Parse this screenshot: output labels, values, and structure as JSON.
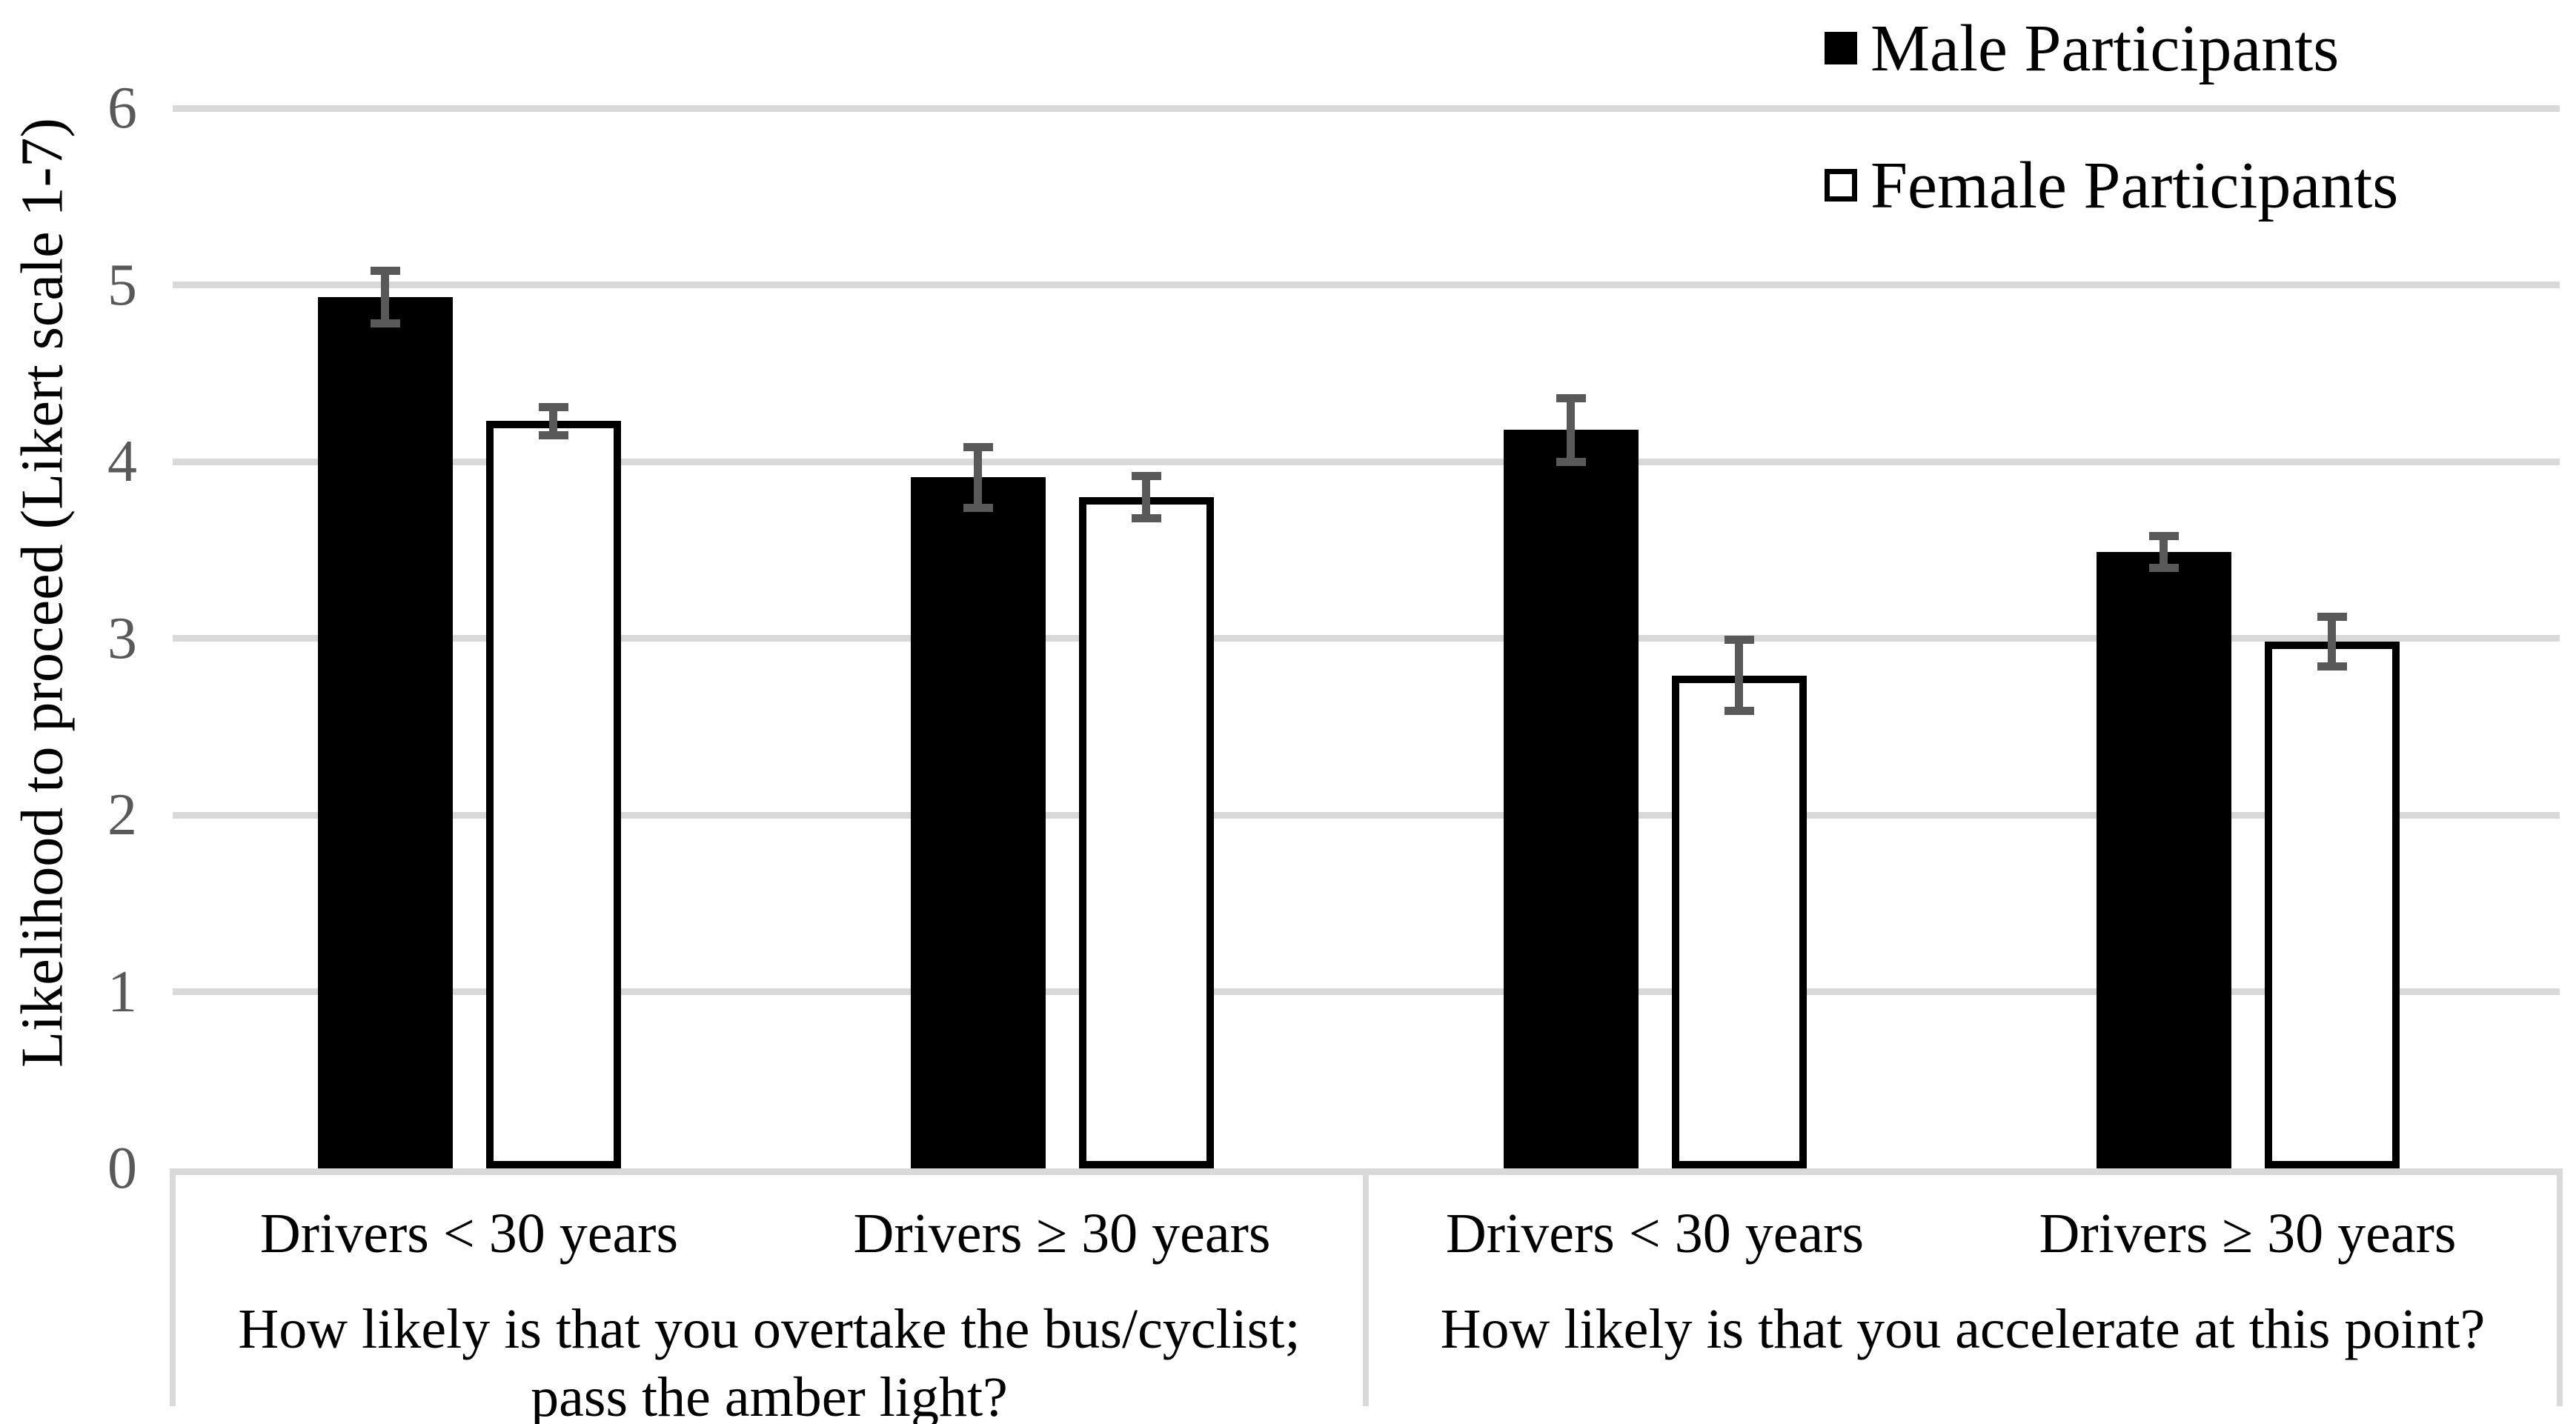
{
  "chart_data": {
    "type": "bar",
    "title": "",
    "ylabel": "Likelihood to proceed (Likert scale 1-7)",
    "xlabel": "",
    "ylim": [
      0,
      6
    ],
    "yticks": [
      0,
      1,
      2,
      3,
      4,
      5,
      6
    ],
    "grid": true,
    "legend_position": "top-right",
    "group_labels": [
      "Drivers < 30 years",
      "Drivers ≥ 30 years",
      "Drivers < 30 years",
      "Drivers ≥ 30 years"
    ],
    "section_labels": [
      "How likely is that you overtake the bus/cyclist; pass the amber light?",
      "How likely is that you accelerate at this point?"
    ],
    "series": [
      {
        "name": "Male Participants",
        "fill": "#000000",
        "outline": "#000000",
        "values": [
          4.93,
          3.91,
          4.18,
          3.49
        ],
        "errors": [
          0.15,
          0.17,
          0.18,
          0.09
        ]
      },
      {
        "name": "Female Participants",
        "fill": "#ffffff",
        "outline": "#000000",
        "values": [
          4.23,
          3.8,
          2.79,
          2.98
        ],
        "errors": [
          0.08,
          0.12,
          0.2,
          0.14
        ]
      }
    ],
    "colors": {
      "gridline": "#d9d9d9",
      "error_bar": "#595959",
      "tick_label": "#595959",
      "text": "#000000",
      "background": "#ffffff"
    }
  }
}
